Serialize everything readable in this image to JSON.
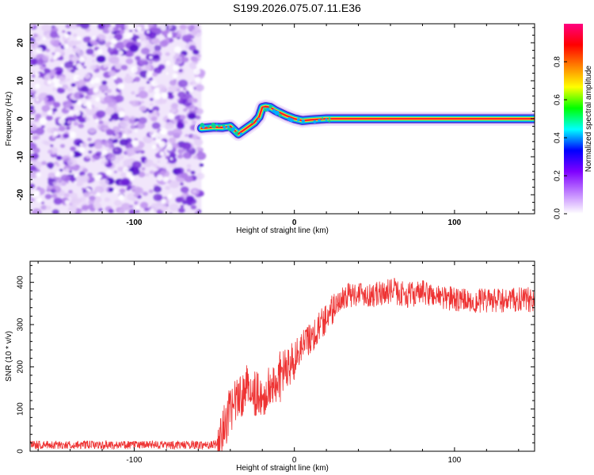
{
  "title": "S199.2026.075.07.11.E36",
  "chart_data": [
    {
      "type": "heatmap",
      "title": "S199.2026.075.07.11.E36",
      "xlabel": "Height of straight line (km)",
      "ylabel": "Frequency (Hz)",
      "xlim": [
        -165,
        150
      ],
      "ylim": [
        -25,
        25
      ],
      "xticks": [
        -100,
        0,
        100
      ],
      "xtick_labels": [
        "-100",
        "0",
        "100"
      ],
      "yticks": [
        -20,
        -10,
        0,
        10,
        20
      ],
      "ytick_labels": [
        "-20",
        "-10",
        "0",
        "10",
        "20"
      ],
      "noise_region_x": [
        -165,
        -58
      ],
      "ridge": {
        "x": [
          -58,
          -50,
          -45,
          -40,
          -35,
          -30,
          -25,
          -22,
          -20,
          -18,
          -15,
          -12,
          -10,
          -5,
          0,
          5,
          10,
          20,
          30,
          50,
          70,
          100,
          150
        ],
        "y": [
          -2.5,
          -2.2,
          -2.3,
          -2.0,
          -4.0,
          -2.5,
          -1.0,
          0.5,
          3.0,
          3.2,
          3.0,
          2.2,
          1.8,
          0.8,
          0.0,
          -0.5,
          -0.3,
          0.0,
          0.0,
          0.0,
          0.0,
          0.0,
          0.0
        ]
      },
      "colorbar": {
        "label": "Normalized spectral amplitude",
        "range": [
          0,
          1
        ],
        "ticks": [
          0.0,
          0.2,
          0.4,
          0.6,
          0.8
        ],
        "tick_labels": [
          "0.0",
          "0.2",
          "0.4",
          "0.6",
          "0.8"
        ],
        "colors": [
          "#ffffff",
          "#c080ff",
          "#7f00ff",
          "#0000ff",
          "#00ffff",
          "#00ff00",
          "#ffff00",
          "#ff8000",
          "#ff0000",
          "#ff0080"
        ]
      }
    },
    {
      "type": "line",
      "xlabel": "Height of straight line (km)",
      "ylabel": "SNR (10 * v/v)",
      "xlim": [
        -165,
        150
      ],
      "ylim": [
        0,
        450
      ],
      "xticks": [
        -100,
        0,
        100
      ],
      "xtick_labels": [
        "-100",
        "0",
        "100"
      ],
      "yticks": [
        0,
        100,
        200,
        300,
        400
      ],
      "ytick_labels": [
        "0",
        "100",
        "200",
        "300",
        "400"
      ],
      "color": "#ee3333",
      "series": [
        {
          "name": "SNR",
          "x": [
            -165,
            -50,
            -46,
            -40,
            -35,
            -30,
            -25,
            -20,
            -15,
            -10,
            -5,
            0,
            5,
            10,
            15,
            20,
            25,
            30,
            40,
            50,
            60,
            70,
            80,
            100,
            120,
            150
          ],
          "values": [
            15,
            15,
            30,
            100,
            120,
            150,
            140,
            125,
            150,
            180,
            190,
            220,
            250,
            270,
            290,
            320,
            340,
            365,
            375,
            370,
            380,
            370,
            375,
            360,
            355,
            360
          ]
        }
      ]
    }
  ]
}
